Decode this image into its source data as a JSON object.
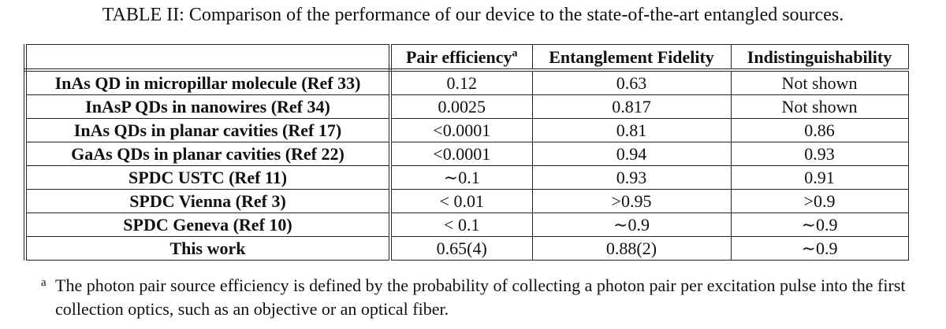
{
  "caption": "TABLE II: Comparison of the performance of our device to the state-of-the-art entangled sources.",
  "table": {
    "columns": [
      "Pair efficiency",
      "Entanglement Fidelity",
      "Indistinguishability"
    ],
    "column_note_marker": "a",
    "rows": [
      [
        "InAs QD in micropillar molecule (Ref 33)",
        "0.12",
        "0.63",
        "Not shown"
      ],
      [
        "InAsP QDs in nanowires (Ref 34)",
        "0.0025",
        "0.817",
        "Not shown"
      ],
      [
        "InAs QDs in planar cavities (Ref 17)",
        "<0.0001",
        "0.81",
        "0.86"
      ],
      [
        "GaAs QDs in planar cavities (Ref 22)",
        "<0.0001",
        "0.94",
        "0.93"
      ],
      [
        "SPDC USTC (Ref 11)",
        "∼0.1",
        "0.93",
        "0.91"
      ],
      [
        "SPDC Vienna (Ref 3)",
        "< 0.01",
        ">0.95",
        ">0.9"
      ],
      [
        "SPDC Geneva (Ref 10)",
        "< 0.1",
        "∼0.9",
        "∼0.9"
      ],
      [
        "This work",
        "0.65(4)",
        "0.88(2)",
        "∼0.9"
      ]
    ]
  },
  "footnote": {
    "marker": "a",
    "text": "The photon pair source efficiency is defined by the probability of collecting a photon pair per excitation pulse into the first collection optics, such as an objective or an optical fiber."
  }
}
